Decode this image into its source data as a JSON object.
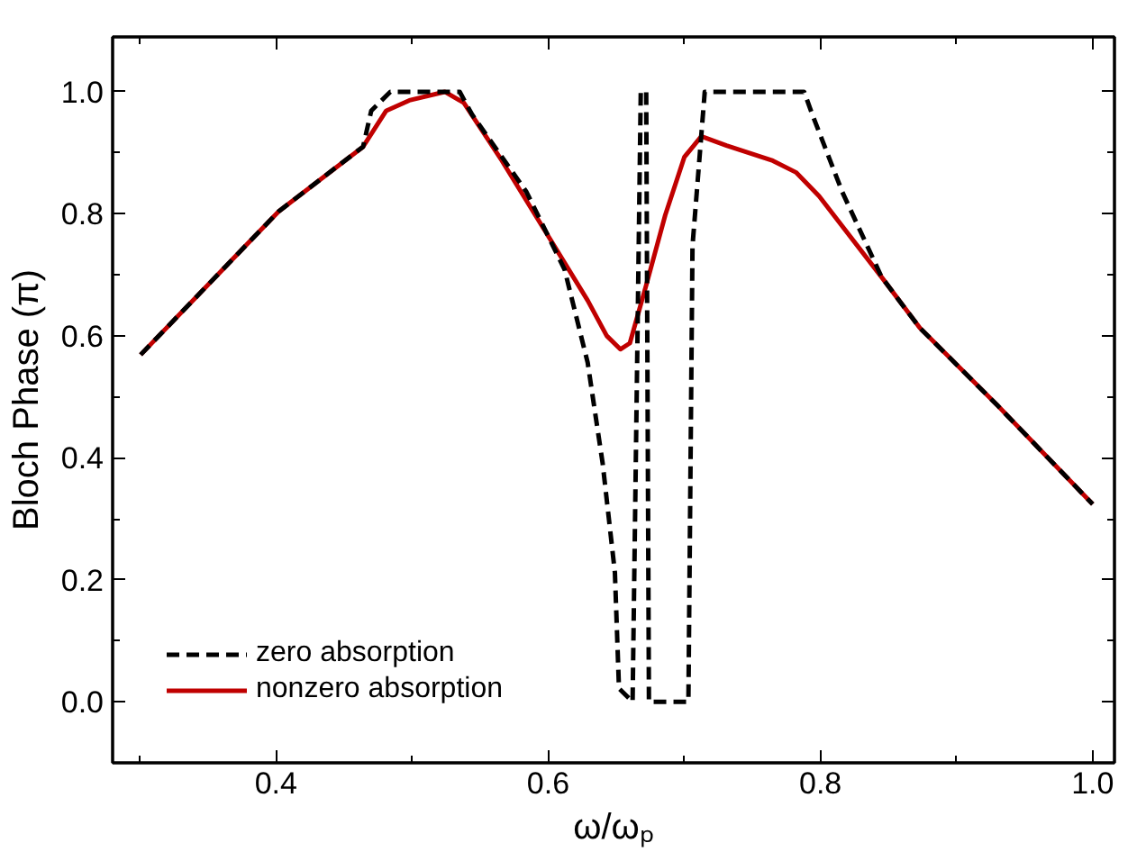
{
  "chart_data": {
    "type": "line",
    "xlabel": "ω/ωₚ",
    "ylabel": "Bloch Phase (π)",
    "xlim": [
      0.28,
      1.016
    ],
    "ylim": [
      -0.1,
      1.09
    ],
    "xticks": [
      0.4,
      0.6,
      0.8,
      {
        "value": 1.0,
        "label": "1.0"
      },
      {
        "value": 0.3,
        "label": null
      },
      {
        "value": 0.5,
        "label": null
      },
      {
        "value": 0.7,
        "label": null
      },
      {
        "value": 0.9,
        "label": null
      }
    ],
    "yticks": [
      {
        "value": 0.0,
        "label": "0.0"
      },
      0.2,
      0.4,
      0.6,
      0.8,
      {
        "value": 1.0,
        "label": "1.0"
      },
      {
        "value": -0.1,
        "label": null
      },
      {
        "value": 0.1,
        "label": null
      },
      {
        "value": 0.3,
        "label": null
      },
      {
        "value": 0.5,
        "label": null
      },
      {
        "value": 0.7,
        "label": null
      },
      {
        "value": 0.9,
        "label": null
      }
    ],
    "grid": false,
    "legend": "bottom left",
    "marker": "none",
    "series": [
      {
        "name": "zero absorption",
        "color": "#000000",
        "line_style": "dashed",
        "x": [
          0.3006,
          0.402,
          0.464,
          0.47,
          0.484,
          0.535,
          0.544,
          0.584,
          0.612,
          0.629,
          0.64,
          0.649,
          0.652,
          0.662,
          0.668,
          0.672,
          0.674,
          0.703,
          0.706,
          0.715,
          0.788,
          0.794,
          0.816,
          0.845,
          0.873,
          0.93,
          1.0
        ],
        "values": [
          0.569,
          0.804,
          0.91,
          0.969,
          1.0,
          1.0,
          0.963,
          0.836,
          0.709,
          0.556,
          0.391,
          0.212,
          0.022,
          0.0,
          1.0,
          1.0,
          0.0,
          0.0,
          0.747,
          1.0,
          1.0,
          0.963,
          0.836,
          0.696,
          0.613,
          0.486,
          0.324
        ]
      },
      {
        "name": "nonzero absorption",
        "color": "#c00000",
        "line_style": "solid",
        "x": [
          0.3006,
          0.402,
          0.464,
          0.481,
          0.498,
          0.524,
          0.538,
          0.566,
          0.601,
          0.629,
          0.643,
          0.653,
          0.66,
          0.672,
          0.686,
          0.7,
          0.7125,
          0.731,
          0.765,
          0.782,
          0.799,
          0.845,
          0.873,
          0.93,
          1.0
        ],
        "values": [
          0.569,
          0.804,
          0.91,
          0.969,
          0.986,
          1.0,
          0.982,
          0.887,
          0.76,
          0.658,
          0.6,
          0.578,
          0.588,
          0.683,
          0.798,
          0.893,
          0.927,
          0.912,
          0.887,
          0.868,
          0.829,
          0.696,
          0.613,
          0.486,
          0.324
        ]
      }
    ]
  }
}
